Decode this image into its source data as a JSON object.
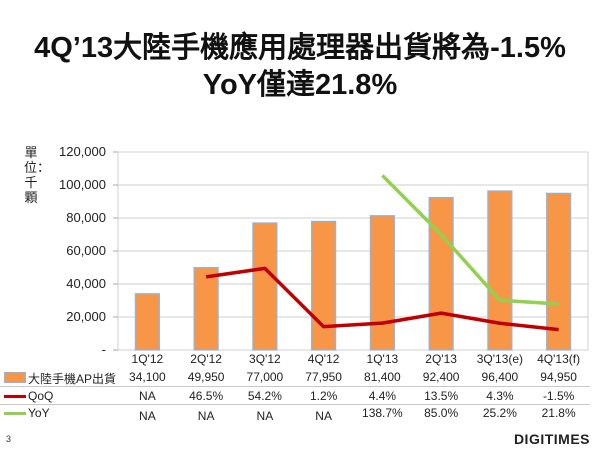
{
  "title_line1": "4Q’13大陸手機應用處理器出貨將為-1.5%",
  "title_line2": "YoY僅達21.8%",
  "page_number": "3",
  "logo": "DIGITIMES",
  "colors": {
    "bar": "#f79646",
    "qoq": "#c00000",
    "yoy": "#92d050"
  },
  "chart_data": {
    "type": "bar+line",
    "title": "4Q’13大陸手機應用處理器出貨將為-1.5% YoY僅達21.8%",
    "ylabel": "單位：千顆",
    "ylim": [
      0,
      120000
    ],
    "secondary_ylim": [
      -20,
      160
    ],
    "yticks": [
      "-",
      "20,000",
      "40,000",
      "60,000",
      "80,000",
      "100,000",
      "120,000"
    ],
    "grid": true,
    "categories": [
      "1Q'12",
      "2Q'12",
      "3Q'12",
      "4Q'12",
      "1Q'13",
      "2Q'13",
      "3Q'13(e)",
      "4Q'13(f)"
    ],
    "series": [
      {
        "name": "大陸手機AP出貨",
        "type": "bar",
        "values": [
          34100,
          49950,
          77000,
          77950,
          81400,
          92400,
          96400,
          94950
        ],
        "labels": [
          "34,100",
          "49,950",
          "77,000",
          "77,950",
          "81,400",
          "92,400",
          "96,400",
          "94,950"
        ]
      },
      {
        "name": "QoQ",
        "type": "line",
        "axis": "secondary",
        "values": [
          null,
          46.5,
          54.2,
          1.2,
          4.4,
          13.5,
          4.3,
          -1.5
        ],
        "labels": [
          "NA",
          "46.5%",
          "54.2%",
          "1.2%",
          "4.4%",
          "13.5%",
          "4.3%",
          "-1.5%"
        ]
      },
      {
        "name": "YoY",
        "type": "line",
        "axis": "secondary",
        "values": [
          null,
          null,
          null,
          null,
          138.7,
          85.0,
          25.2,
          21.8
        ],
        "labels": [
          "NA",
          "NA",
          "NA",
          "NA",
          "138.7%",
          "85.0%",
          "25.2%",
          "21.8%"
        ]
      }
    ],
    "legend": "data-table"
  }
}
